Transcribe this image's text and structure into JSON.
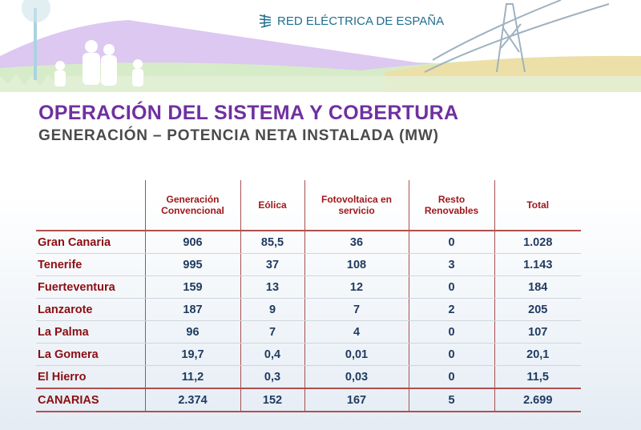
{
  "brand": {
    "logo_text": "RED ELÉCTRICA DE ESPAÑA"
  },
  "title": "OPERACIÓN DEL SISTEMA Y COBERTURA",
  "subtitle": "GENERACIÓN – POTENCIA NETA INSTALADA (MW)",
  "table": {
    "headers": [
      "",
      "Generación Convencional",
      "Eólica",
      "Fotovoltaica en servicio",
      "Resto Renovables",
      "Total"
    ],
    "rows": [
      [
        "Gran Canaria",
        "906",
        "85,5",
        "36",
        "0",
        "1.028"
      ],
      [
        "Tenerife",
        "995",
        "37",
        "108",
        "3",
        "1.143"
      ],
      [
        "Fuerteventura",
        "159",
        "13",
        "12",
        "0",
        "184"
      ],
      [
        "Lanzarote",
        "187",
        "9",
        "7",
        "2",
        "205"
      ],
      [
        "La Palma",
        "96",
        "7",
        "4",
        "0",
        "107"
      ],
      [
        "La Gomera",
        "19,7",
        "0,4",
        "0,01",
        "0",
        "20,1"
      ],
      [
        "El Hierro",
        "11,2",
        "0,3",
        "0,03",
        "0",
        "11,5"
      ]
    ],
    "total": [
      "CANARIAS",
      "2.374",
      "152",
      "167",
      "5",
      "2.699"
    ]
  }
}
